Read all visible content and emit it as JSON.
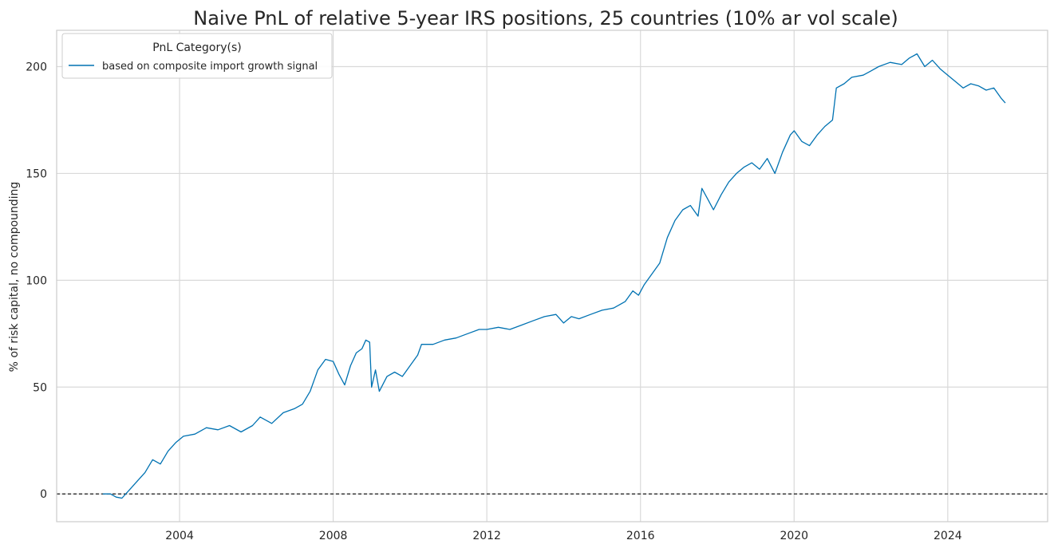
{
  "chart_data": {
    "type": "line",
    "title": "Naive PnL of relative 5-year IRS positions, 25 countries (10% ar vol scale)",
    "xlabel": "",
    "ylabel": "% of risk capital, no compounding",
    "xlim": [
      2000.8,
      2026.6
    ],
    "ylim": [
      -13,
      217
    ],
    "x_ticks": [
      2004,
      2008,
      2012,
      2016,
      2020,
      2024
    ],
    "x_tick_labels": [
      "2004",
      "2008",
      "2012",
      "2016",
      "2020",
      "2024"
    ],
    "y_ticks": [
      0,
      50,
      100,
      150,
      200
    ],
    "y_tick_labels": [
      "0",
      "50",
      "100",
      "150",
      "200"
    ],
    "grid": true,
    "reference_line": {
      "y": 0,
      "style": "dashed",
      "color": "#000000"
    },
    "legend": {
      "title": "PnL Category(s)",
      "placement": "top-left",
      "entries": [
        "based on composite import growth signal"
      ]
    },
    "series": [
      {
        "name": "based on composite import growth signal",
        "color": "#0072B2",
        "x": [
          2002.0,
          2002.2,
          2002.35,
          2002.5,
          2002.7,
          2002.9,
          2003.1,
          2003.3,
          2003.5,
          2003.7,
          2003.9,
          2004.1,
          2004.4,
          2004.7,
          2005.0,
          2005.3,
          2005.6,
          2005.9,
          2006.1,
          2006.4,
          2006.7,
          2007.0,
          2007.2,
          2007.4,
          2007.6,
          2007.8,
          2008.0,
          2008.15,
          2008.3,
          2008.45,
          2008.6,
          2008.75,
          2008.85,
          2008.95,
          2009.0,
          2009.1,
          2009.2,
          2009.4,
          2009.6,
          2009.8,
          2010.0,
          2010.2,
          2010.3,
          2010.6,
          2010.9,
          2011.2,
          2011.5,
          2011.8,
          2012.0,
          2012.3,
          2012.6,
          2012.9,
          2013.2,
          2013.5,
          2013.8,
          2014.0,
          2014.2,
          2014.4,
          2014.7,
          2015.0,
          2015.3,
          2015.6,
          2015.8,
          2015.95,
          2016.1,
          2016.3,
          2016.5,
          2016.7,
          2016.9,
          2017.1,
          2017.3,
          2017.5,
          2017.6,
          2017.75,
          2017.9,
          2018.1,
          2018.3,
          2018.5,
          2018.7,
          2018.9,
          2019.1,
          2019.3,
          2019.5,
          2019.7,
          2019.9,
          2020.0,
          2020.2,
          2020.4,
          2020.6,
          2020.8,
          2021.0,
          2021.1,
          2021.3,
          2021.5,
          2021.8,
          2022.0,
          2022.2,
          2022.5,
          2022.8,
          2023.0,
          2023.2,
          2023.4,
          2023.6,
          2023.8,
          2024.0,
          2024.2,
          2024.4,
          2024.6,
          2024.8,
          2025.0,
          2025.2,
          2025.4,
          2025.5
        ],
        "values": [
          0,
          0,
          -1.5,
          -2,
          2,
          6,
          10,
          16,
          14,
          20,
          24,
          27,
          28,
          31,
          30,
          32,
          29,
          32,
          36,
          33,
          38,
          40,
          42,
          48,
          58,
          63,
          62,
          56,
          51,
          60,
          66,
          68,
          72,
          71,
          50,
          58,
          48,
          55,
          57,
          55,
          60,
          65,
          70,
          70,
          72,
          73,
          75,
          77,
          77,
          78,
          77,
          79,
          81,
          83,
          84,
          80,
          83,
          82,
          84,
          86,
          87,
          90,
          95,
          93,
          98,
          103,
          108,
          120,
          128,
          133,
          135,
          130,
          143,
          138,
          133,
          140,
          146,
          150,
          153,
          155,
          152,
          157,
          150,
          160,
          168,
          170,
          165,
          163,
          168,
          172,
          175,
          190,
          192,
          195,
          196,
          198,
          200,
          202,
          201,
          204,
          206,
          200,
          203,
          199,
          196,
          193,
          190,
          192,
          191,
          189,
          190,
          185,
          183
        ]
      }
    ]
  }
}
